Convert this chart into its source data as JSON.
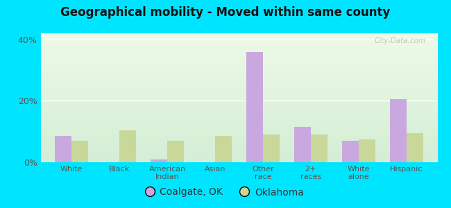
{
  "title": "Geographical mobility - Moved within same county",
  "categories": [
    "White",
    "Black",
    "American\nIndian",
    "Asian",
    "Other\nrace",
    "2+\nraces",
    "White\nalone",
    "Hispanic"
  ],
  "coalgate_values": [
    8.5,
    0,
    1.0,
    0,
    36.0,
    11.5,
    7.0,
    20.5
  ],
  "oklahoma_values": [
    7.0,
    10.5,
    7.0,
    8.5,
    9.0,
    9.0,
    7.5,
    9.5
  ],
  "coalgate_color": "#c9a8e0",
  "oklahoma_color": "#c8d89a",
  "background_outer": "#00e5ff",
  "ylim": [
    0,
    42
  ],
  "yticks": [
    0,
    20,
    40
  ],
  "ytick_labels": [
    "0%",
    "20%",
    "40%"
  ],
  "bar_width": 0.35,
  "legend_labels": [
    "Coalgate, OK",
    "Oklahoma"
  ],
  "watermark": "City-Data.com"
}
